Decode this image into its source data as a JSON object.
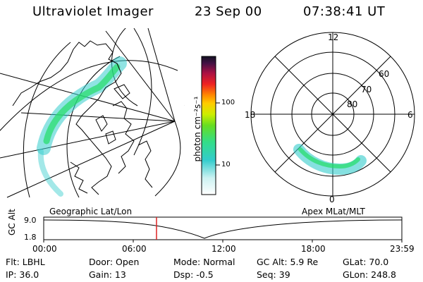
{
  "header": {
    "instrument": "Ultraviolet Imager",
    "date": "23 Sep 00",
    "time": "07:38:41 UT"
  },
  "colorbar": {
    "unit_label": "photon cm⁻²s⁻¹",
    "ticks": [
      "100",
      "10"
    ]
  },
  "geo_panel": {
    "label": "Geographic Lat/Lon"
  },
  "polar_panel": {
    "label": "Apex MLat/MLT",
    "mlt_labels": [
      "12",
      "18",
      "6",
      "0"
    ],
    "mlat_labels": [
      "60",
      "70",
      "80"
    ]
  },
  "orbit": {
    "axis_label": "GC Alt",
    "yticks": [
      "9.0",
      "1.8"
    ],
    "time_ticks": [
      "00:00",
      "06:00",
      "12:00",
      "18:00",
      "23:59"
    ]
  },
  "info": {
    "row1": [
      "Flt: LBHL",
      "Door: Open",
      "Mode: Normal",
      "GC Alt: 5.9 Re",
      "GLat: 70.0"
    ],
    "row2": [
      "IP: 36.0",
      "Gain: 13",
      "Dsp: -0.5",
      "Seq: 39",
      "GLon: 248.8"
    ]
  },
  "colors": {
    "aurora_low": "#33cccc",
    "aurora_mid": "#22dd55",
    "marker": "#dd2222"
  }
}
